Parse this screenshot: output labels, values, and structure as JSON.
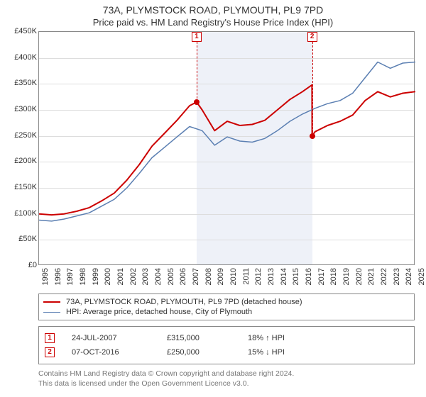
{
  "title_line1": "73A, PLYMSTOCK ROAD, PLYMOUTH, PL9 7PD",
  "title_line2": "Price paid vs. HM Land Registry's House Price Index (HPI)",
  "chart": {
    "type": "line",
    "background_color": "#ffffff",
    "border_color": "#888888",
    "grid_color": "#dddddd",
    "band_color": "#eef1f8",
    "x": {
      "min": 1995,
      "max": 2025,
      "tick_step": 1
    },
    "y": {
      "min": 0,
      "max": 450000,
      "tick_step": 50000,
      "prefix": "£",
      "suffix_k": true
    },
    "bands": [
      {
        "from": 2007.56,
        "to": 2016.77
      }
    ],
    "series": [
      {
        "key": "property",
        "label": "73A, PLYMSTOCK ROAD, PLYMOUTH, PL9 7PD (detached house)",
        "color": "#cc0000",
        "width": 2,
        "points": [
          [
            1995,
            100000
          ],
          [
            1996,
            98000
          ],
          [
            1997,
            100000
          ],
          [
            1998,
            105000
          ],
          [
            1999,
            112000
          ],
          [
            2000,
            125000
          ],
          [
            2001,
            140000
          ],
          [
            2002,
            165000
          ],
          [
            2003,
            195000
          ],
          [
            2004,
            230000
          ],
          [
            2005,
            255000
          ],
          [
            2006,
            280000
          ],
          [
            2007,
            308000
          ],
          [
            2007.56,
            315000
          ],
          [
            2008,
            300000
          ],
          [
            2009,
            260000
          ],
          [
            2010,
            278000
          ],
          [
            2011,
            270000
          ],
          [
            2012,
            272000
          ],
          [
            2013,
            280000
          ],
          [
            2014,
            300000
          ],
          [
            2015,
            320000
          ],
          [
            2016,
            335000
          ],
          [
            2016.76,
            348000
          ],
          [
            2016.77,
            250000
          ],
          [
            2017,
            258000
          ],
          [
            2018,
            270000
          ],
          [
            2019,
            278000
          ],
          [
            2020,
            290000
          ],
          [
            2021,
            318000
          ],
          [
            2022,
            335000
          ],
          [
            2023,
            325000
          ],
          [
            2024,
            332000
          ],
          [
            2025,
            335000
          ]
        ]
      },
      {
        "key": "hpi",
        "label": "HPI: Average price, detached house, City of Plymouth",
        "color": "#5b7fb2",
        "width": 1.5,
        "points": [
          [
            1995,
            88000
          ],
          [
            1996,
            86000
          ],
          [
            1997,
            90000
          ],
          [
            1998,
            96000
          ],
          [
            1999,
            102000
          ],
          [
            2000,
            115000
          ],
          [
            2001,
            128000
          ],
          [
            2002,
            150000
          ],
          [
            2003,
            178000
          ],
          [
            2004,
            208000
          ],
          [
            2005,
            228000
          ],
          [
            2006,
            248000
          ],
          [
            2007,
            268000
          ],
          [
            2008,
            260000
          ],
          [
            2009,
            232000
          ],
          [
            2010,
            248000
          ],
          [
            2011,
            240000
          ],
          [
            2012,
            238000
          ],
          [
            2013,
            245000
          ],
          [
            2014,
            260000
          ],
          [
            2015,
            278000
          ],
          [
            2016,
            292000
          ],
          [
            2017,
            303000
          ],
          [
            2018,
            312000
          ],
          [
            2019,
            318000
          ],
          [
            2020,
            332000
          ],
          [
            2021,
            362000
          ],
          [
            2022,
            392000
          ],
          [
            2023,
            380000
          ],
          [
            2024,
            390000
          ],
          [
            2025,
            392000
          ]
        ]
      }
    ],
    "markers": [
      {
        "id": "1",
        "x": 2007.56,
        "y": 315000
      },
      {
        "id": "2",
        "x": 2016.77,
        "y": 250000
      }
    ]
  },
  "transactions": [
    {
      "id": "1",
      "date": "24-JUL-2007",
      "price": "£315,000",
      "hpi_delta": "18% ↑ HPI"
    },
    {
      "id": "2",
      "date": "07-OCT-2016",
      "price": "£250,000",
      "hpi_delta": "15% ↓ HPI"
    }
  ],
  "footer_line1": "Contains HM Land Registry data © Crown copyright and database right 2024.",
  "footer_line2": "This data is licensed under the Open Government Licence v3.0.",
  "colors": {
    "marker_border": "#cc0000",
    "footer_text": "#777777"
  },
  "fontsizes": {
    "title": 14,
    "subtitle": 13,
    "axis": 11,
    "legend": 11,
    "footer": 10.5
  }
}
